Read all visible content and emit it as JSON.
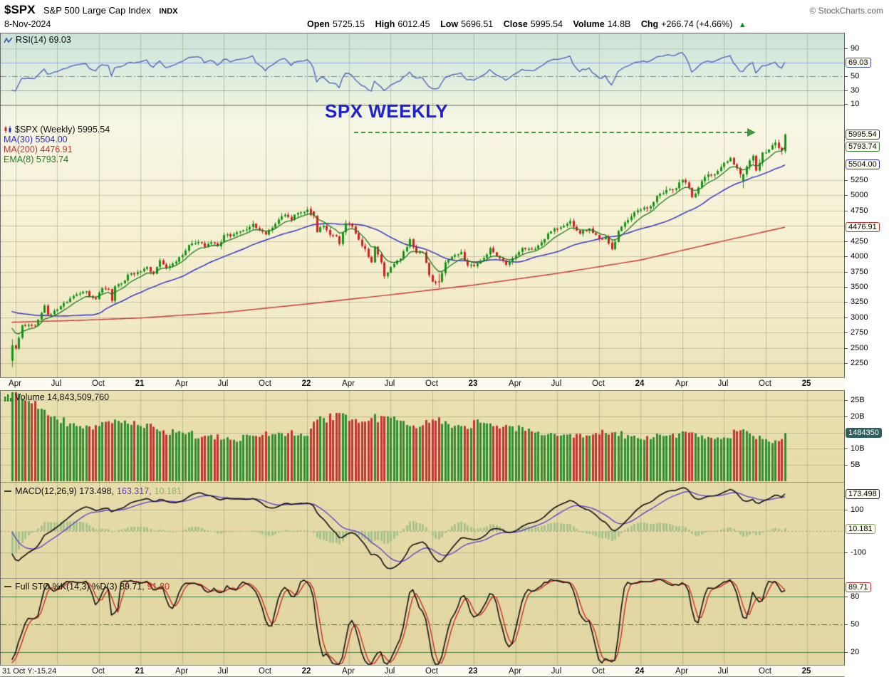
{
  "header": {
    "symbol": "$SPX",
    "name": "S&P 500 Large Cap Index",
    "exchange": "INDX",
    "credit": "© StockCharts.com",
    "date": "8-Nov-2024",
    "quote_fields": [
      {
        "label": "Open",
        "value": "5725.15"
      },
      {
        "label": "High",
        "value": "6012.45"
      },
      {
        "label": "Low",
        "value": "5696.51"
      },
      {
        "label": "Close",
        "value": "5995.54"
      },
      {
        "label": "Volume",
        "value": "14.8B"
      },
      {
        "label": "Chg",
        "value": "+266.74 (+4.66%)"
      }
    ],
    "direction_arrow": "▲",
    "up_color": "#009900"
  },
  "annotations": {
    "title": "SPX WEEKLY",
    "title_color": "#2222cc",
    "arrow_color": "#3e9b3e"
  },
  "panels": {
    "rsi": {
      "legend": "RSI(14) 69.03",
      "badge": {
        "text": "69.03",
        "value": 69.03,
        "color": "#3b4fc0"
      },
      "ticks": [
        90,
        50,
        30,
        10
      ]
    },
    "price": {
      "legend_main": "$SPX (Weekly) 5995.54",
      "legend_ma30": "MA(30) 5504.00",
      "legend_ma200": "MA(200) 4476.91",
      "legend_ema8": "EMA(8) 5793.74",
      "ticks": [
        5250,
        5000,
        4750,
        4250,
        4000,
        3750,
        3500,
        3250,
        3000,
        2750,
        2500,
        2250
      ],
      "badges": [
        {
          "text": "5995.54",
          "value": 5995.54,
          "color": "#333333"
        },
        {
          "text": "5793.74",
          "value": 5793.74,
          "color": "#2c7c2c"
        },
        {
          "text": "5504.00",
          "value": 5504.0,
          "color": "#2b2bc8"
        },
        {
          "text": "4476.91",
          "value": 4476.91,
          "color": "#c83232"
        }
      ],
      "ma30_color": "#2b2bc8",
      "ma200_color": "#c83232",
      "ema8_color": "#1f7a1f",
      "up_color": "#149414",
      "down_color": "#d02020"
    },
    "volume": {
      "legend": "Volume 14,843,509,760",
      "ticks": [
        [
          25,
          "25B"
        ],
        [
          20,
          "20B"
        ],
        [
          10,
          "10B"
        ],
        [
          5,
          "5B"
        ]
      ],
      "badge": {
        "text": "1484350",
        "value": 14.84,
        "bg": "#2e5f5f"
      }
    },
    "macd": {
      "legend_parts": [
        {
          "text": "MACD(12,26,9) 173.498,",
          "color": "#111111"
        },
        {
          "text": "163.317,",
          "color": "#5a3bce"
        },
        {
          "text": "10.181",
          "color": "#8fae6f"
        }
      ],
      "ticks": [
        [
          100,
          "100"
        ],
        [
          -100,
          "-100"
        ]
      ],
      "badges": [
        {
          "text": "173.498",
          "value": 173.498,
          "color": "#333333"
        },
        {
          "text": "10.181",
          "value": 10.181,
          "color": "#7fa05f"
        }
      ],
      "macd_color": "#111111",
      "signal_color": "#5a3bce",
      "hist_color": "#a9c38c"
    },
    "sto": {
      "legend_parts": [
        {
          "text": "Full STO %K(14,3) %D(3) 89.71,",
          "color": "#111111"
        },
        {
          "text": "91.80",
          "color": "#d02020"
        }
      ],
      "ticks": [
        [
          80,
          "80"
        ],
        [
          50,
          "50"
        ],
        [
          20,
          "20"
        ]
      ],
      "badge": {
        "text": "89.71",
        "value": 89.71,
        "color": "#c83232"
      },
      "k_color": "#111111",
      "d_color": "#d02020",
      "line_color": "#3f7a3f"
    },
    "footer_note": "31 Oct Y:-15.24"
  },
  "chart_data": {
    "type": "multi-panel-financial",
    "symbol": "$SPX",
    "timeframe": "weekly",
    "date_range": [
      "2020-03-27",
      "2024-11-08"
    ],
    "latest": {
      "open": 5725.15,
      "high": 6012.45,
      "low": 5696.51,
      "close": 5995.54,
      "volume": 14843509760,
      "change": 266.74,
      "change_pct": 4.66,
      "rsi14": 69.03,
      "ma30": 5504.0,
      "ma200": 4476.91,
      "ema8": 5793.74,
      "macd": 173.498,
      "macd_signal": 163.317,
      "macd_hist": 10.181,
      "stoch_k": 89.71,
      "stoch_d": 91.8
    },
    "x_ticks": [
      {
        "label": "Apr",
        "week": 1
      },
      {
        "label": "Jul",
        "week": 14
      },
      {
        "label": "Oct",
        "week": 27
      },
      {
        "label": "21",
        "week": 40,
        "bold": true
      },
      {
        "label": "Apr",
        "week": 53
      },
      {
        "label": "Jul",
        "week": 66
      },
      {
        "label": "Oct",
        "week": 79
      },
      {
        "label": "22",
        "week": 92,
        "bold": true
      },
      {
        "label": "Apr",
        "week": 105
      },
      {
        "label": "Jul",
        "week": 118
      },
      {
        "label": "Oct",
        "week": 131
      },
      {
        "label": "23",
        "week": 144,
        "bold": true
      },
      {
        "label": "Apr",
        "week": 157
      },
      {
        "label": "Jul",
        "week": 170
      },
      {
        "label": "Oct",
        "week": 183
      },
      {
        "label": "24",
        "week": 196,
        "bold": true
      },
      {
        "label": "Apr",
        "week": 209
      },
      {
        "label": "Jul",
        "week": 222
      },
      {
        "label": "Oct",
        "week": 235
      },
      {
        "label": "25",
        "week": 248,
        "bold": true
      }
    ],
    "rsi": {
      "range": [
        0,
        100
      ],
      "guides": [
        70,
        50,
        30
      ]
    },
    "price": {
      "ylim": [
        2018,
        6475
      ],
      "grid": [
        5250,
        5000,
        4750,
        4500,
        4250,
        4000,
        3750,
        3500,
        3250,
        3000,
        2750,
        2500,
        2250
      ],
      "pre_anchors": [
        [
          -40,
          2950
        ],
        [
          -30,
          3000
        ],
        [
          -20,
          3120
        ],
        [
          -8,
          3327
        ],
        [
          -5,
          3338
        ],
        [
          -4,
          2954
        ],
        [
          -3,
          2972
        ],
        [
          -2,
          2711
        ],
        [
          -1,
          2305
        ]
      ],
      "close_anchors": [
        [
          0,
          2541
        ],
        [
          1,
          2489
        ],
        [
          3,
          2875
        ],
        [
          7,
          2864
        ],
        [
          10,
          3194
        ],
        [
          11,
          3041
        ],
        [
          14,
          3130
        ],
        [
          19,
          3351
        ],
        [
          23,
          3427
        ],
        [
          25,
          3319
        ],
        [
          26,
          3298
        ],
        [
          28,
          3477
        ],
        [
          30,
          3465
        ],
        [
          31,
          3270
        ],
        [
          32,
          3509
        ],
        [
          34,
          3558
        ],
        [
          36,
          3699
        ],
        [
          38,
          3709
        ],
        [
          40,
          3756
        ],
        [
          42,
          3825
        ],
        [
          44,
          3714
        ],
        [
          46,
          3935
        ],
        [
          48,
          3811
        ],
        [
          49,
          3842
        ],
        [
          51,
          3913
        ],
        [
          53,
          4020
        ],
        [
          55,
          4185
        ],
        [
          58,
          4233
        ],
        [
          60,
          4156
        ],
        [
          62,
          4230
        ],
        [
          64,
          4166
        ],
        [
          66,
          4352
        ],
        [
          68,
          4327
        ],
        [
          70,
          4395
        ],
        [
          73,
          4442
        ],
        [
          75,
          4535
        ],
        [
          77,
          4433
        ],
        [
          79,
          4357
        ],
        [
          81,
          4471
        ],
        [
          83,
          4605
        ],
        [
          85,
          4683
        ],
        [
          87,
          4595
        ],
        [
          89,
          4712
        ],
        [
          91,
          4726
        ],
        [
          92,
          4766
        ],
        [
          94,
          4663
        ],
        [
          95,
          4398
        ],
        [
          97,
          4501
        ],
        [
          99,
          4349
        ],
        [
          101,
          4329
        ],
        [
          102,
          4204
        ],
        [
          104,
          4543
        ],
        [
          106,
          4488
        ],
        [
          108,
          4272
        ],
        [
          110,
          4123
        ],
        [
          112,
          3901
        ],
        [
          113,
          4158
        ],
        [
          115,
          3901
        ],
        [
          116,
          3675
        ],
        [
          118,
          3825
        ],
        [
          121,
          3962
        ],
        [
          124,
          4280
        ],
        [
          126,
          4058
        ],
        [
          128,
          4067
        ],
        [
          130,
          3693
        ],
        [
          131,
          3586
        ],
        [
          133,
          3583
        ],
        [
          135,
          3901
        ],
        [
          137,
          3993
        ],
        [
          140,
          4072
        ],
        [
          142,
          3852
        ],
        [
          144,
          3839
        ],
        [
          147,
          3973
        ],
        [
          149,
          4136
        ],
        [
          152,
          3970
        ],
        [
          154,
          3862
        ],
        [
          156,
          3971
        ],
        [
          159,
          4138
        ],
        [
          163,
          4124
        ],
        [
          166,
          4282
        ],
        [
          168,
          4410
        ],
        [
          170,
          4450
        ],
        [
          174,
          4582
        ],
        [
          177,
          4370
        ],
        [
          180,
          4457
        ],
        [
          183,
          4288
        ],
        [
          185,
          4328
        ],
        [
          187,
          4117
        ],
        [
          189,
          4415
        ],
        [
          192,
          4595
        ],
        [
          195,
          4755
        ],
        [
          196,
          4770
        ],
        [
          198,
          4784
        ],
        [
          200,
          4891
        ],
        [
          202,
          5027
        ],
        [
          204,
          5089
        ],
        [
          207,
          5117
        ],
        [
          209,
          5254
        ],
        [
          211,
          5123
        ],
        [
          212,
          4967
        ],
        [
          214,
          5128
        ],
        [
          216,
          5303
        ],
        [
          219,
          5347
        ],
        [
          221,
          5465
        ],
        [
          224,
          5615
        ],
        [
          225,
          5505
        ],
        [
          227,
          5347
        ],
        [
          228,
          5344
        ],
        [
          231,
          5648
        ],
        [
          232,
          5408
        ],
        [
          234,
          5703
        ],
        [
          236,
          5751
        ],
        [
          238,
          5865
        ],
        [
          240,
          5729
        ],
        [
          241,
          5995.54
        ]
      ],
      "ohlc_overrides": {
        "0": [
          2290,
          2637,
          2192,
          2541
        ],
        "93": [
          4778,
          4818,
          4662,
          4677
        ],
        "116": [
          3901,
          3920,
          3636,
          3675
        ],
        "133": [
          3590,
          3712,
          3491,
          3583
        ],
        "187": [
          4224,
          4260,
          4103,
          4117
        ],
        "228": [
          5240,
          5358,
          5119,
          5344
        ],
        "241": [
          5725.15,
          6012.45,
          5696.51,
          5995.54
        ]
      },
      "ma200_anchors": [
        [
          0,
          2920
        ],
        [
          20,
          2950
        ],
        [
          40,
          2990
        ],
        [
          66,
          3080
        ],
        [
          92,
          3220
        ],
        [
          118,
          3370
        ],
        [
          144,
          3530
        ],
        [
          170,
          3720
        ],
        [
          196,
          3940
        ],
        [
          220,
          4230
        ],
        [
          241,
          4477
        ]
      ]
    },
    "volume": {
      "unit": "billions",
      "anchors": [
        [
          0,
          29
        ],
        [
          2,
          27
        ],
        [
          6,
          24
        ],
        [
          10,
          22
        ],
        [
          14,
          19
        ],
        [
          20,
          17
        ],
        [
          27,
          17
        ],
        [
          32,
          19
        ],
        [
          40,
          17
        ],
        [
          45,
          16
        ],
        [
          53,
          15
        ],
        [
          60,
          14
        ],
        [
          66,
          13
        ],
        [
          75,
          14
        ],
        [
          83,
          15
        ],
        [
          92,
          14
        ],
        [
          95,
          19
        ],
        [
          102,
          21
        ],
        [
          108,
          18
        ],
        [
          116,
          20
        ],
        [
          124,
          17
        ],
        [
          131,
          19
        ],
        [
          140,
          17
        ],
        [
          147,
          18
        ],
        [
          155,
          17
        ],
        [
          163,
          15
        ],
        [
          170,
          14
        ],
        [
          180,
          14
        ],
        [
          187,
          15
        ],
        [
          196,
          13
        ],
        [
          204,
          14
        ],
        [
          211,
          15
        ],
        [
          221,
          13
        ],
        [
          228,
          16
        ],
        [
          234,
          13
        ],
        [
          240,
          13
        ],
        [
          241,
          14.84
        ]
      ]
    },
    "macd": {
      "params": [
        12,
        26,
        9
      ]
    },
    "stochastics": {
      "k": [
        14,
        3
      ],
      "d": 3,
      "guides": [
        80,
        50,
        20
      ]
    }
  }
}
